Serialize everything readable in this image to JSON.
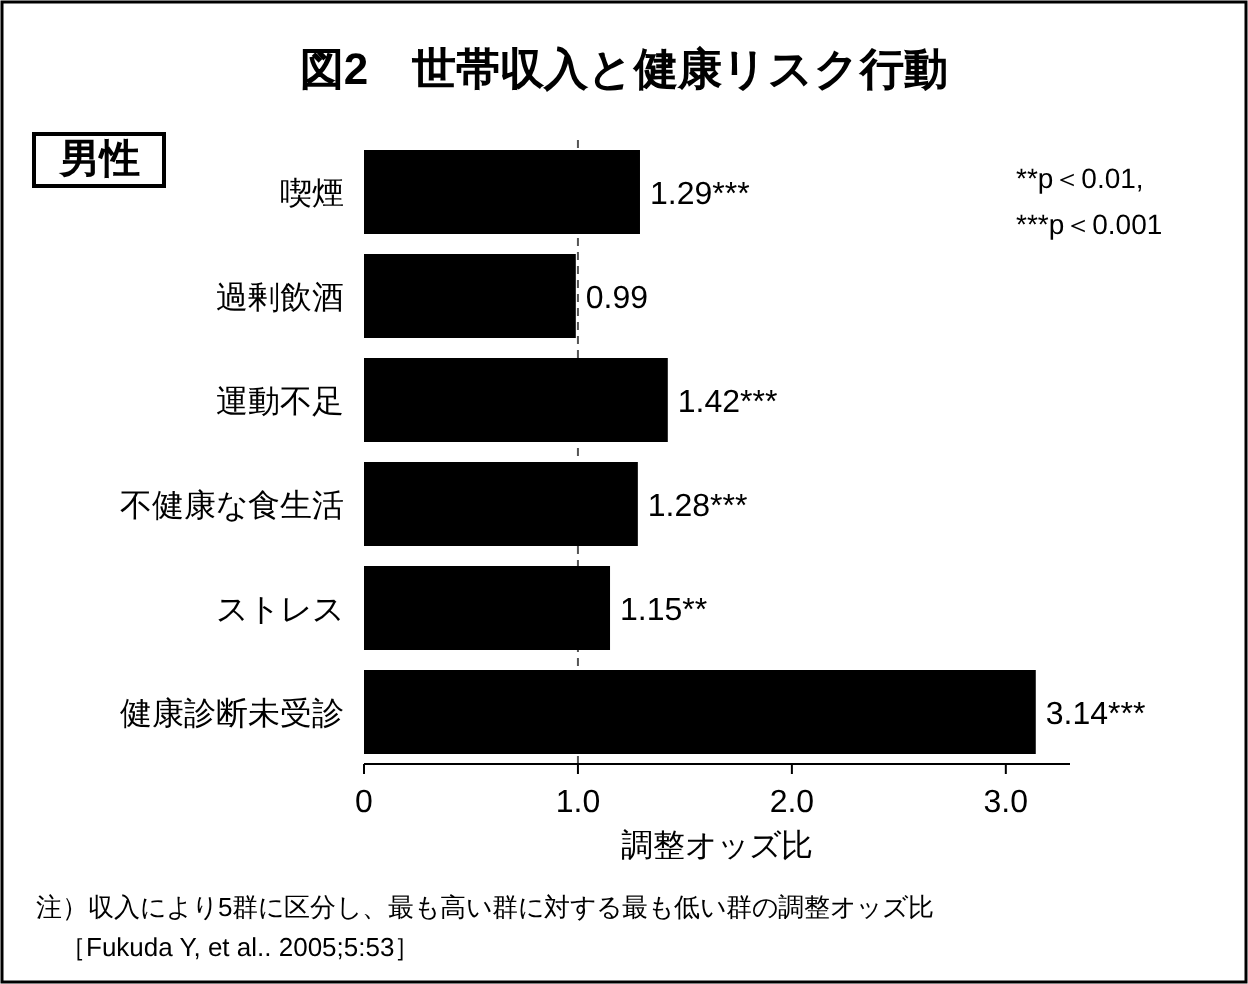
{
  "chart_data": {
    "type": "bar",
    "orientation": "horizontal",
    "title": "図2　世帯収入と健康リスク行動",
    "xlabel": "調整オッズ比",
    "categories": [
      "喫煙",
      "過剰飲酒",
      "運動不足",
      "不健康な食生活",
      "ストレス",
      "健康診断未受診"
    ],
    "values": [
      1.29,
      0.99,
      1.42,
      1.28,
      1.15,
      3.14
    ],
    "value_labels": [
      "1.29***",
      "0.99",
      "1.42***",
      "1.28***",
      "1.15**",
      "3.14***"
    ],
    "color": "#000000",
    "xlim": [
      0,
      3.3
    ],
    "xticks": [
      0,
      {
        "value": 1,
        "label": "1.0"
      },
      {
        "value": 2,
        "label": "2.0"
      },
      {
        "value": 3,
        "label": "3.0"
      }
    ],
    "ref_lines": [
      {
        "axis": "x",
        "value": 1,
        "line_style": "dashed",
        "color": "#555555"
      }
    ],
    "annotations": [
      "男性",
      "**p＜0.01,",
      "***p＜0.001",
      "注）収入により5群に区分し、最も高い群に対する最も低い群の調整オッズ比",
      "［Fukuda Y, et al.. 2005;5:53］"
    ]
  }
}
